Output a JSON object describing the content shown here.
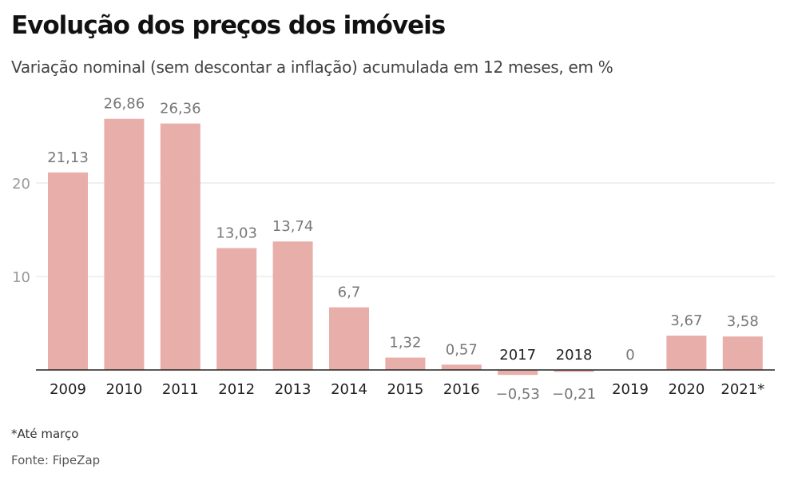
{
  "chart_data": {
    "type": "bar",
    "title": "Evolução dos preços dos imóveis",
    "subtitle": "Variação nominal (sem descontar a inflação) acumulada em 12 meses, em %",
    "categories": [
      "2009",
      "2010",
      "2011",
      "2012",
      "2013",
      "2014",
      "2015",
      "2016",
      "2017",
      "2018",
      "2019",
      "2020",
      "2021*"
    ],
    "values": [
      21.13,
      26.86,
      26.36,
      13.03,
      13.74,
      6.7,
      1.32,
      0.57,
      -0.53,
      -0.21,
      0,
      3.67,
      3.58
    ],
    "data_labels": [
      "21,13",
      "26,86",
      "26,36",
      "13,03",
      "13,74",
      "6,7",
      "1,32",
      "0,57",
      "−0,53",
      "−0,21",
      "0",
      "3,67",
      "3,58"
    ],
    "yticks": [
      10,
      20
    ],
    "ylim": [
      -1,
      28
    ],
    "grid": true,
    "bar_color": "#e8aeaa",
    "xlabel": "",
    "ylabel": ""
  },
  "footnote": "*Até março",
  "source": "Fonte: FipeZap"
}
